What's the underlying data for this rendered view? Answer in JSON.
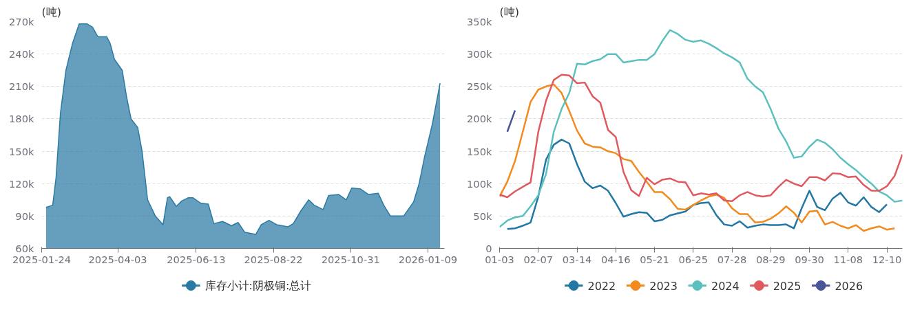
{
  "chart_data": [
    {
      "type": "area",
      "ylabel": "(吨)",
      "legend": "bottom",
      "grid": "y",
      "line_style": "solid",
      "x": [
        "2025-01-28",
        "2025-02-03",
        "2025-02-06",
        "2025-02-10",
        "2025-02-15",
        "2025-02-21",
        "2025-02-27",
        "2025-03-06",
        "2025-03-11",
        "2025-03-16",
        "2025-03-24",
        "2025-03-27",
        "2025-03-31",
        "2025-04-07",
        "2025-04-11",
        "2025-04-15",
        "2025-04-21",
        "2025-04-25",
        "2025-04-30",
        "2025-05-07",
        "2025-05-14",
        "2025-05-18",
        "2025-05-20",
        "2025-05-26",
        "2025-05-31",
        "2025-06-06",
        "2025-06-10",
        "2025-06-17",
        "2025-06-24",
        "2025-06-29",
        "2025-07-07",
        "2025-07-15",
        "2025-07-21",
        "2025-07-27",
        "2025-08-06",
        "2025-08-11",
        "2025-08-18",
        "2025-08-25",
        "2025-09-04",
        "2025-09-09",
        "2025-09-16",
        "2025-09-23",
        "2025-09-28",
        "2025-10-06",
        "2025-10-11",
        "2025-10-20",
        "2025-10-27",
        "2025-11-01",
        "2025-11-09",
        "2025-11-16",
        "2025-11-25",
        "2025-11-30",
        "2025-12-06",
        "2025-12-18",
        "2025-12-27",
        "2026-01-01",
        "2026-01-06",
        "2026-01-13",
        "2026-01-20"
      ],
      "series": [
        {
          "name": "库存小计:阴极铜:总计",
          "color": "#2a7aa3",
          "values": [
            98000,
            100000,
            125000,
            185000,
            225000,
            250000,
            268000,
            268000,
            265000,
            256000,
            256000,
            250000,
            235000,
            225000,
            200000,
            180000,
            172000,
            150000,
            105000,
            90000,
            82000,
            107000,
            108000,
            99000,
            104000,
            107000,
            107000,
            102000,
            101000,
            83000,
            85000,
            81000,
            84000,
            75000,
            73000,
            82000,
            86000,
            82000,
            80000,
            83000,
            95000,
            105000,
            100000,
            96000,
            109000,
            110000,
            105000,
            116000,
            115000,
            110000,
            111000,
            100000,
            90000,
            90000,
            103000,
            120000,
            145000,
            175000,
            213000
          ]
        }
      ],
      "xlim": [
        "2025-01-24",
        "2026-01-24"
      ],
      "xticks": [
        "2025-01-24",
        "2025-04-03",
        "2025-06-13",
        "2025-08-22",
        "2025-10-31",
        "2026-01-09"
      ],
      "ylim": [
        60000,
        270000
      ],
      "yticks": [
        {
          "value": 60000,
          "label": "60k"
        },
        {
          "value": 90000,
          "label": "90k"
        },
        {
          "value": 120000,
          "label": "120k"
        },
        {
          "value": 150000,
          "label": "150k"
        },
        {
          "value": 180000,
          "label": "180k"
        },
        {
          "value": 210000,
          "label": "210k"
        },
        {
          "value": 240000,
          "label": "240k"
        },
        {
          "value": 270000,
          "label": "270k"
        }
      ]
    },
    {
      "type": "line",
      "ylabel": "(吨)",
      "legend": "bottom",
      "grid": "y",
      "line_style": "solid",
      "categories": [
        "01-03",
        null,
        null,
        null,
        null,
        "02-07",
        null,
        null,
        null,
        null,
        "03-14",
        null,
        null,
        null,
        null,
        "04-16",
        null,
        null,
        null,
        null,
        "05-21",
        null,
        null,
        null,
        null,
        "06-25",
        null,
        null,
        null,
        null,
        "07-28",
        null,
        null,
        null,
        null,
        "08-29",
        null,
        null,
        null,
        null,
        "09-30",
        null,
        null,
        null,
        null,
        "11-08",
        null,
        null,
        null,
        null,
        "12-10",
        null,
        null
      ],
      "series": [
        {
          "name": "2022",
          "color": "#2377a4",
          "values": [
            null,
            30000,
            31000,
            35000,
            40000,
            80000,
            137000,
            160000,
            168000,
            162000,
            130000,
            103000,
            93000,
            97000,
            89000,
            70000,
            49000,
            53000,
            56000,
            55000,
            42000,
            44000,
            51000,
            54000,
            57000,
            67000,
            70000,
            71000,
            51000,
            37000,
            35000,
            42000,
            32000,
            35000,
            37000,
            36000,
            36000,
            37000,
            31000,
            62000,
            89000,
            64000,
            59000,
            77000,
            86000,
            71000,
            66000,
            79000,
            64000,
            56000,
            68000,
            null,
            null
          ]
        },
        {
          "name": "2023",
          "color": "#f28a1e",
          "values": [
            80000,
            103000,
            135000,
            180000,
            226000,
            245000,
            250000,
            253000,
            240000,
            212000,
            182000,
            162000,
            157000,
            156000,
            150000,
            147000,
            138000,
            135000,
            118000,
            103000,
            87000,
            87000,
            76000,
            61000,
            60000,
            67000,
            74000,
            80000,
            83000,
            78000,
            62000,
            53000,
            53000,
            40000,
            41000,
            46000,
            54000,
            65000,
            55000,
            40000,
            57000,
            58000,
            37000,
            41000,
            35000,
            31000,
            36000,
            27000,
            31000,
            34000,
            29000,
            31000,
            null
          ]
        },
        {
          "name": "2024",
          "color": "#5bc0be",
          "values": [
            33000,
            43000,
            48000,
            50000,
            65000,
            82000,
            115000,
            180000,
            215000,
            240000,
            285000,
            284000,
            289000,
            292000,
            300000,
            300000,
            287000,
            289000,
            291000,
            291000,
            300000,
            320000,
            337000,
            331000,
            322000,
            319000,
            321000,
            316000,
            309000,
            301000,
            295000,
            287000,
            262000,
            250000,
            241000,
            215000,
            185000,
            165000,
            140000,
            142000,
            157000,
            168000,
            163000,
            153000,
            140000,
            130000,
            121000,
            110000,
            100000,
            88000,
            82000,
            72000,
            74000
          ]
        },
        {
          "name": "2025",
          "color": "#e0595e",
          "values": [
            83000,
            79000,
            88000,
            95000,
            102000,
            180000,
            228000,
            260000,
            268000,
            267000,
            255000,
            256000,
            235000,
            225000,
            183000,
            172000,
            118000,
            90000,
            81000,
            109000,
            99000,
            106000,
            108000,
            103000,
            102000,
            82000,
            85000,
            83000,
            85000,
            74000,
            73000,
            82000,
            87000,
            82000,
            80000,
            82000,
            95000,
            106000,
            100000,
            96000,
            110000,
            110000,
            105000,
            116000,
            115000,
            110000,
            111000,
            98000,
            89000,
            89000,
            96000,
            112000,
            145000
          ]
        },
        {
          "name": "2026",
          "color": "#4a5597",
          "values": [
            null,
            180000,
            213000,
            null,
            null,
            null,
            null,
            null,
            null,
            null,
            null,
            null,
            null,
            null,
            null,
            null,
            null,
            null,
            null,
            null,
            null,
            null,
            null,
            null,
            null,
            null,
            null,
            null,
            null,
            null,
            null,
            null,
            null,
            null,
            null,
            null,
            null,
            null,
            null,
            null,
            null,
            null,
            null,
            null,
            null,
            null,
            null,
            null,
            null,
            null,
            null,
            null,
            null
          ]
        }
      ],
      "ylim": [
        0,
        350000
      ],
      "yticks": [
        0,
        {
          "value": 50000,
          "label": "50k"
        },
        {
          "value": 100000,
          "label": "100k"
        },
        {
          "value": 150000,
          "label": "150k"
        },
        {
          "value": 200000,
          "label": "200k"
        },
        {
          "value": 250000,
          "label": "250k"
        },
        {
          "value": 300000,
          "label": "300k"
        },
        {
          "value": 350000,
          "label": "350k"
        }
      ]
    }
  ]
}
